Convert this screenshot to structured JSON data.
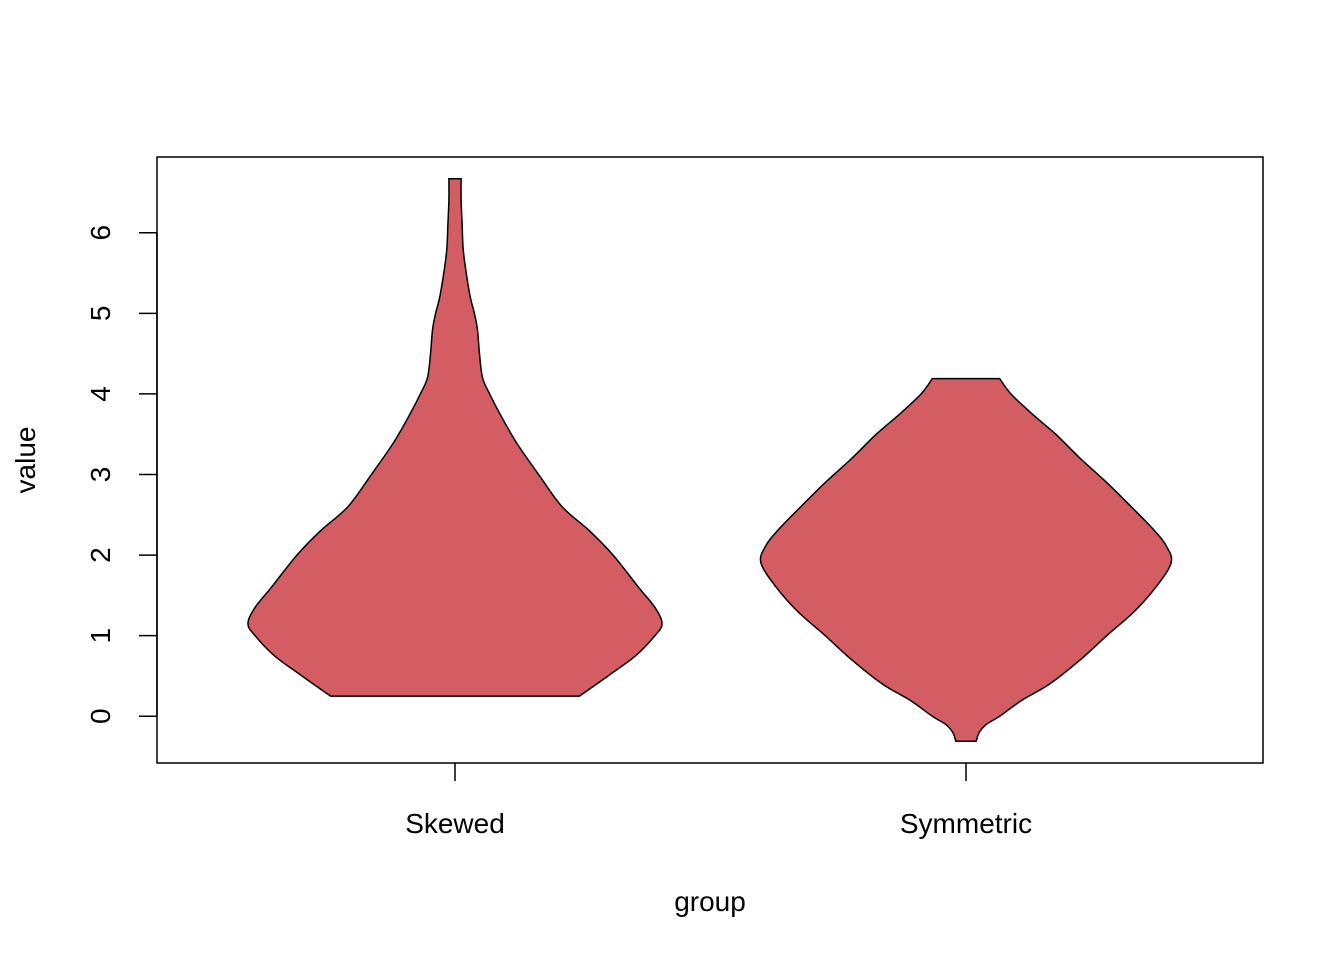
{
  "chart_data": {
    "type": "violin",
    "xlabel": "group",
    "ylabel": "value",
    "categories": [
      "Skewed",
      "Symmetric"
    ],
    "yticks": [
      0,
      1,
      2,
      3,
      4,
      5,
      6
    ],
    "ylim": [
      -0.58,
      6.94
    ],
    "fill_color": "#D35D63",
    "stroke_color": "#000000",
    "series": [
      {
        "category": "Skewed",
        "min": 0.25,
        "max": 6.67,
        "profile": [
          [
            0.25,
            1.22
          ],
          [
            0.5,
            1.5
          ],
          [
            0.75,
            1.77
          ],
          [
            1.0,
            1.96
          ],
          [
            1.15,
            2.03
          ],
          [
            1.35,
            1.96
          ],
          [
            1.6,
            1.8
          ],
          [
            2.0,
            1.55
          ],
          [
            2.3,
            1.32
          ],
          [
            2.6,
            1.05
          ],
          [
            3.0,
            0.82
          ],
          [
            3.4,
            0.6
          ],
          [
            3.8,
            0.42
          ],
          [
            4.0,
            0.34
          ],
          [
            4.2,
            0.27
          ],
          [
            4.5,
            0.24
          ],
          [
            4.8,
            0.22
          ],
          [
            5.0,
            0.19
          ],
          [
            5.2,
            0.15
          ],
          [
            5.5,
            0.11
          ],
          [
            5.8,
            0.08
          ],
          [
            6.1,
            0.07
          ],
          [
            6.4,
            0.06
          ],
          [
            6.67,
            0.06
          ]
        ]
      },
      {
        "category": "Symmetric",
        "min": -0.31,
        "max": 4.19,
        "profile": [
          [
            -0.31,
            0.1
          ],
          [
            -0.2,
            0.13
          ],
          [
            -0.1,
            0.2
          ],
          [
            0.0,
            0.33
          ],
          [
            0.2,
            0.55
          ],
          [
            0.4,
            0.82
          ],
          [
            0.7,
            1.12
          ],
          [
            1.0,
            1.38
          ],
          [
            1.3,
            1.65
          ],
          [
            1.6,
            1.86
          ],
          [
            1.9,
            2.01
          ],
          [
            2.1,
            1.97
          ],
          [
            2.3,
            1.85
          ],
          [
            2.6,
            1.62
          ],
          [
            2.9,
            1.38
          ],
          [
            3.2,
            1.12
          ],
          [
            3.5,
            0.88
          ],
          [
            3.75,
            0.65
          ],
          [
            4.0,
            0.44
          ],
          [
            4.19,
            0.33
          ]
        ]
      }
    ]
  }
}
